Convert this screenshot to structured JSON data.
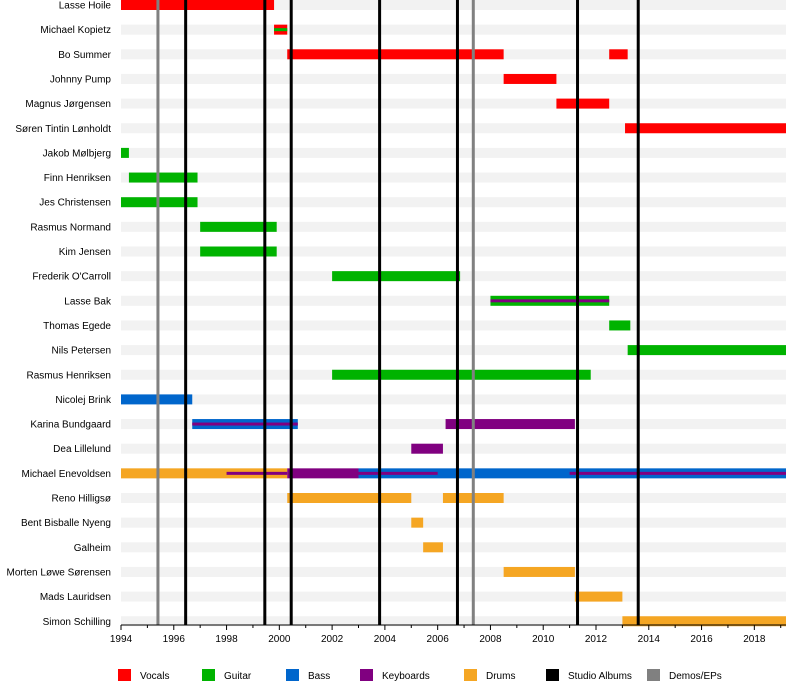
{
  "chart_data": {
    "type": "timeline",
    "title": "",
    "xlabel": "",
    "ylabel": "",
    "xlim": [
      1994,
      2019.2
    ],
    "x_ticks": [
      1994,
      1996,
      1998,
      2000,
      2002,
      2004,
      2006,
      2008,
      2010,
      2012,
      2014,
      2016,
      2018
    ],
    "legend": [
      {
        "role": "vocals",
        "label": "Vocals",
        "color": "#ff0000"
      },
      {
        "role": "guitar",
        "label": "Guitar",
        "color": "#00b300"
      },
      {
        "role": "bass",
        "label": "Bass",
        "color": "#0066cc"
      },
      {
        "role": "keyboards",
        "label": "Keyboards",
        "color": "#800080"
      },
      {
        "role": "drums",
        "label": "Drums",
        "color": "#f5a623"
      },
      {
        "role": "studio",
        "label": "Studio Albums",
        "color": "#000000"
      },
      {
        "role": "demo",
        "label": "Demos/EPs",
        "color": "#808080"
      }
    ],
    "studio_albums": [
      1996.45,
      1999.45,
      2000.45,
      2003.8,
      2006.75,
      2011.3,
      2013.6
    ],
    "demos": [
      1995.4,
      2007.35
    ],
    "members": [
      {
        "name": "Lasse Hoile",
        "bars": [
          {
            "start": 1994.0,
            "end": 1999.8,
            "role": "vocals"
          }
        ]
      },
      {
        "name": "Michael Kopietz",
        "bars": [
          {
            "start": 1999.8,
            "end": 2000.3,
            "role": "vocals",
            "stripe": "guitar"
          }
        ]
      },
      {
        "name": "Bo Summer",
        "bars": [
          {
            "start": 2000.3,
            "end": 2008.5,
            "role": "vocals"
          },
          {
            "start": 2012.5,
            "end": 2013.2,
            "role": "vocals"
          }
        ]
      },
      {
        "name": "Johnny Pump",
        "bars": [
          {
            "start": 2008.5,
            "end": 2010.5,
            "role": "vocals"
          }
        ]
      },
      {
        "name": "Magnus Jørgensen",
        "bars": [
          {
            "start": 2010.5,
            "end": 2012.5,
            "role": "vocals"
          }
        ]
      },
      {
        "name": "Søren Tintin Lønholdt",
        "bars": [
          {
            "start": 2013.1,
            "end": 2019.2,
            "role": "vocals"
          }
        ]
      },
      {
        "name": "Jakob Mølbjerg",
        "bars": [
          {
            "start": 1994.0,
            "end": 1994.3,
            "role": "guitar"
          }
        ]
      },
      {
        "name": "Finn Henriksen",
        "bars": [
          {
            "start": 1994.3,
            "end": 1996.9,
            "role": "guitar"
          }
        ]
      },
      {
        "name": "Jes Christensen",
        "bars": [
          {
            "start": 1994.0,
            "end": 1996.9,
            "role": "guitar"
          }
        ]
      },
      {
        "name": "Rasmus Normand",
        "bars": [
          {
            "start": 1997.0,
            "end": 1999.9,
            "role": "guitar"
          }
        ]
      },
      {
        "name": "Kim Jensen",
        "bars": [
          {
            "start": 1997.0,
            "end": 1999.9,
            "role": "guitar"
          }
        ]
      },
      {
        "name": "Frederik O'Carroll",
        "bars": [
          {
            "start": 2002.0,
            "end": 2006.85,
            "role": "guitar"
          }
        ]
      },
      {
        "name": "Lasse Bak",
        "bars": [
          {
            "start": 2008.0,
            "end": 2012.5,
            "role": "guitar",
            "stripe": "keyboards"
          }
        ]
      },
      {
        "name": "Thomas Egede",
        "bars": [
          {
            "start": 2012.5,
            "end": 2013.3,
            "role": "guitar"
          }
        ]
      },
      {
        "name": "Nils Petersen",
        "bars": [
          {
            "start": 2013.2,
            "end": 2019.2,
            "role": "guitar"
          }
        ]
      },
      {
        "name": "Rasmus Henriksen",
        "bars": [
          {
            "start": 2002.0,
            "end": 2011.8,
            "role": "guitar"
          }
        ]
      },
      {
        "name": "Nicolej Brink",
        "bars": [
          {
            "start": 1994.0,
            "end": 1996.7,
            "role": "bass"
          }
        ]
      },
      {
        "name": "Karina Bundgaard",
        "bars": [
          {
            "start": 1996.7,
            "end": 2000.7,
            "role": "bass",
            "stripe": "keyboards"
          },
          {
            "start": 2006.3,
            "end": 2011.2,
            "role": "keyboards"
          }
        ]
      },
      {
        "name": "Dea Lillelund",
        "bars": [
          {
            "start": 2005.0,
            "end": 2006.2,
            "role": "keyboards"
          }
        ]
      },
      {
        "name": "Michael Enevoldsen",
        "bars": [
          {
            "start": 1994.0,
            "end": 2000.3,
            "role": "drums"
          },
          {
            "start": 2000.3,
            "end": 2003.0,
            "role": "keyboards"
          },
          {
            "start": 2003.0,
            "end": 2019.2,
            "role": "bass"
          }
        ],
        "stripes": [
          {
            "start": 1998.0,
            "end": 2000.3,
            "role": "keyboards"
          },
          {
            "start": 2003.0,
            "end": 2006.0,
            "role": "keyboards"
          },
          {
            "start": 2011.0,
            "end": 2019.2,
            "role": "keyboards"
          }
        ]
      },
      {
        "name": "Reno Hilligsø",
        "bars": [
          {
            "start": 2000.3,
            "end": 2005.0,
            "role": "drums"
          },
          {
            "start": 2006.2,
            "end": 2008.5,
            "role": "drums"
          }
        ]
      },
      {
        "name": "Bent Bisballe Nyeng",
        "bars": [
          {
            "start": 2005.0,
            "end": 2005.45,
            "role": "drums"
          }
        ]
      },
      {
        "name": "Galheim",
        "bars": [
          {
            "start": 2005.45,
            "end": 2006.2,
            "role": "drums"
          }
        ]
      },
      {
        "name": "Morten Løwe Sørensen",
        "bars": [
          {
            "start": 2008.5,
            "end": 2011.2,
            "role": "drums"
          }
        ]
      },
      {
        "name": "Mads Lauridsen",
        "bars": [
          {
            "start": 2011.2,
            "end": 2013.0,
            "role": "drums"
          }
        ]
      },
      {
        "name": "Simon Schilling",
        "bars": [
          {
            "start": 2013.0,
            "end": 2019.2,
            "role": "drums"
          }
        ]
      }
    ]
  }
}
